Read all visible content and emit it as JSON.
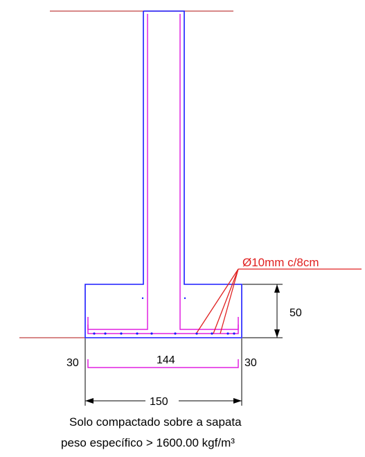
{
  "labels": {
    "rebar": "Ø10mm c/8cm",
    "height": "50",
    "left_cover": "30",
    "inner_width": "144",
    "right_cover": "30",
    "total_width": "150",
    "note_line1": "Solo compactado sobre a sapata",
    "note_line2": "peso específico > 1600.00 kgf/m³"
  },
  "colors": {
    "concrete": "#1a1aff",
    "rebar": "#e020e0",
    "ground": "#c04040",
    "leader": "#e02020",
    "dimension": "#000000"
  }
}
